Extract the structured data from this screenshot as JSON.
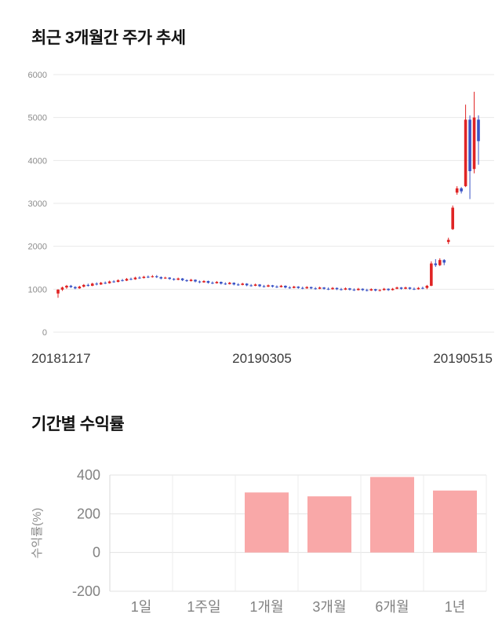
{
  "sections": {
    "price": {
      "title": "최근 3개월간 주가 추세"
    },
    "returns": {
      "title": "기간별 수익률"
    }
  },
  "chart_data": [
    {
      "type": "candlestick",
      "title": "최근 3개월간 주가 추세",
      "ylim": [
        0,
        6000
      ],
      "yticks": [
        0,
        1000,
        2000,
        3000,
        4000,
        5000,
        6000
      ],
      "x_labels": [
        "20181217",
        "20190305",
        "20190515"
      ],
      "up_color": "#e02424",
      "down_color": "#3a53c5",
      "grid_color": "#e8e8e8",
      "tick_color": "#8c8c8c",
      "candles_ohlc": [
        [
          900,
          1000,
          800,
          990
        ],
        [
          990,
          1060,
          960,
          1040
        ],
        [
          1040,
          1100,
          1010,
          1080
        ],
        [
          1080,
          1100,
          1030,
          1050
        ],
        [
          1050,
          1070,
          1000,
          1020
        ],
        [
          1020,
          1080,
          1010,
          1060
        ],
        [
          1060,
          1120,
          1040,
          1100
        ],
        [
          1100,
          1130,
          1060,
          1080
        ],
        [
          1080,
          1150,
          1070,
          1130
        ],
        [
          1130,
          1160,
          1090,
          1110
        ],
        [
          1110,
          1170,
          1100,
          1150
        ],
        [
          1150,
          1180,
          1120,
          1140
        ],
        [
          1140,
          1200,
          1130,
          1180
        ],
        [
          1180,
          1210,
          1150,
          1170
        ],
        [
          1170,
          1230,
          1160,
          1210
        ],
        [
          1210,
          1240,
          1180,
          1200
        ],
        [
          1200,
          1260,
          1190,
          1240
        ],
        [
          1240,
          1270,
          1210,
          1230
        ],
        [
          1230,
          1290,
          1220,
          1270
        ],
        [
          1270,
          1300,
          1240,
          1260
        ],
        [
          1260,
          1310,
          1250,
          1290
        ],
        [
          1290,
          1320,
          1260,
          1280
        ],
        [
          1280,
          1330,
          1270,
          1300
        ],
        [
          1300,
          1330,
          1260,
          1280
        ],
        [
          1280,
          1300,
          1230,
          1250
        ],
        [
          1250,
          1290,
          1240,
          1270
        ],
        [
          1270,
          1280,
          1220,
          1240
        ],
        [
          1240,
          1260,
          1200,
          1220
        ],
        [
          1220,
          1270,
          1210,
          1250
        ],
        [
          1250,
          1260,
          1190,
          1210
        ],
        [
          1210,
          1230,
          1170,
          1190
        ],
        [
          1190,
          1240,
          1180,
          1220
        ],
        [
          1220,
          1230,
          1160,
          1180
        ],
        [
          1180,
          1200,
          1140,
          1160
        ],
        [
          1160,
          1210,
          1150,
          1190
        ],
        [
          1190,
          1200,
          1130,
          1150
        ],
        [
          1150,
          1180,
          1120,
          1140
        ],
        [
          1140,
          1190,
          1130,
          1170
        ],
        [
          1170,
          1180,
          1110,
          1130
        ],
        [
          1130,
          1160,
          1100,
          1120
        ],
        [
          1120,
          1170,
          1110,
          1150
        ],
        [
          1150,
          1160,
          1090,
          1110
        ],
        [
          1110,
          1140,
          1080,
          1100
        ],
        [
          1100,
          1150,
          1090,
          1130
        ],
        [
          1130,
          1140,
          1070,
          1090
        ],
        [
          1090,
          1120,
          1060,
          1080
        ],
        [
          1080,
          1130,
          1070,
          1110
        ],
        [
          1110,
          1120,
          1050,
          1070
        ],
        [
          1070,
          1100,
          1040,
          1060
        ],
        [
          1060,
          1110,
          1050,
          1090
        ],
        [
          1090,
          1100,
          1040,
          1060
        ],
        [
          1060,
          1090,
          1030,
          1050
        ],
        [
          1050,
          1100,
          1040,
          1080
        ],
        [
          1080,
          1090,
          1020,
          1040
        ],
        [
          1040,
          1070,
          1010,
          1030
        ],
        [
          1030,
          1080,
          1020,
          1060
        ],
        [
          1060,
          1070,
          1010,
          1030
        ],
        [
          1030,
          1060,
          1000,
          1020
        ],
        [
          1020,
          1070,
          1010,
          1050
        ],
        [
          1050,
          1060,
          1000,
          1020
        ],
        [
          1020,
          1050,
          990,
          1010
        ],
        [
          1010,
          1060,
          1000,
          1040
        ],
        [
          1040,
          1050,
          990,
          1010
        ],
        [
          1010,
          1040,
          980,
          1000
        ],
        [
          1000,
          1050,
          990,
          1030
        ],
        [
          1030,
          1040,
          980,
          1000
        ],
        [
          1000,
          1030,
          970,
          990
        ],
        [
          990,
          1040,
          980,
          1020
        ],
        [
          1020,
          1030,
          970,
          990
        ],
        [
          990,
          1020,
          960,
          980
        ],
        [
          980,
          1030,
          970,
          1010
        ],
        [
          1010,
          1020,
          960,
          980
        ],
        [
          980,
          1010,
          950,
          970
        ],
        [
          970,
          1020,
          960,
          1000
        ],
        [
          1000,
          1010,
          950,
          970
        ],
        [
          970,
          1000,
          950,
          980
        ],
        [
          980,
          1030,
          970,
          1010
        ],
        [
          1010,
          1020,
          960,
          980
        ],
        [
          980,
          1030,
          970,
          1010
        ],
        [
          1010,
          1060,
          1000,
          1040
        ],
        [
          1040,
          1050,
          990,
          1010
        ],
        [
          1010,
          1060,
          1000,
          1040
        ],
        [
          1040,
          1050,
          990,
          1010
        ],
        [
          1010,
          1040,
          980,
          1000
        ],
        [
          1000,
          1050,
          990,
          1030
        ],
        [
          1030,
          1060,
          1000,
          1020
        ],
        [
          1030,
          1100,
          1000,
          1080
        ],
        [
          1080,
          1650,
          1070,
          1600
        ],
        [
          1600,
          1700,
          1520,
          1560
        ],
        [
          1560,
          1720,
          1540,
          1680
        ],
        [
          1680,
          1700,
          1560,
          1620
        ],
        [
          2100,
          2200,
          2050,
          2150
        ],
        [
          2400,
          2950,
          2380,
          2900
        ],
        [
          3250,
          3400,
          3200,
          3350
        ],
        [
          3350,
          3380,
          3230,
          3280
        ],
        [
          3400,
          5300,
          3380,
          4950
        ],
        [
          4950,
          5050,
          3100,
          3750
        ],
        [
          3800,
          5600,
          3700,
          5000
        ],
        [
          4950,
          5050,
          3900,
          4450
        ]
      ]
    },
    {
      "type": "bar",
      "title": "기간별 수익률",
      "categories": [
        "1일",
        "1주일",
        "1개월",
        "3개월",
        "6개월",
        "1년"
      ],
      "values": [
        0,
        0,
        310,
        290,
        390,
        320
      ],
      "ylabel": "수익률(%)",
      "ylim": [
        -200,
        400
      ],
      "yticks": [
        400,
        200,
        0,
        -200
      ],
      "bar_color": "#f9a8a8",
      "grid_color": "#e3e3e3",
      "axis_line_color": "#d9d9d9",
      "tick_color": "#828282"
    }
  ]
}
